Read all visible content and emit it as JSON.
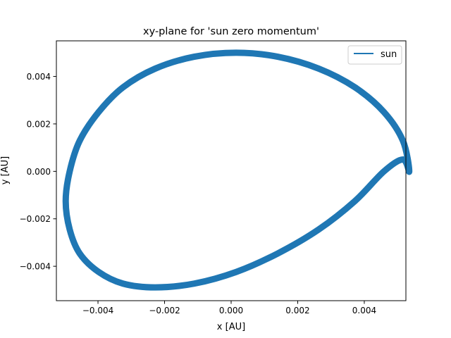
{
  "chart_data": {
    "type": "line",
    "title": "xy-plane for 'sun zero momentum'",
    "xlabel": "x [AU]",
    "ylabel": "y [AU]",
    "xlim": [
      -0.00525,
      0.00525
    ],
    "ylim": [
      -0.00545,
      0.0055
    ],
    "xticks": [
      {
        "value": -0.004,
        "label": "−0.004"
      },
      {
        "value": -0.002,
        "label": "−0.002"
      },
      {
        "value": 0.0,
        "label": "0.000"
      },
      {
        "value": 0.002,
        "label": "0.002"
      },
      {
        "value": 0.004,
        "label": "0.004"
      }
    ],
    "yticks": [
      {
        "value": -0.004,
        "label": "−0.004"
      },
      {
        "value": -0.002,
        "label": "−0.002"
      },
      {
        "value": 0.0,
        "label": "0.000"
      },
      {
        "value": 0.002,
        "label": "0.002"
      },
      {
        "value": 0.004,
        "label": "0.004"
      }
    ],
    "grid": false,
    "legend": {
      "position": "top-right",
      "entries": [
        "sun"
      ]
    },
    "series": [
      {
        "name": "sun",
        "color": "#1f77b4",
        "x": [
          0.00535,
          0.00516,
          0.00459,
          0.00372,
          0.00263,
          0.0014,
          0.00015,
          -0.00111,
          -0.00228,
          -0.00325,
          -0.00398,
          -0.00455,
          -0.00485,
          -0.00497,
          -0.00485,
          -0.00455,
          -0.00398,
          -0.00325,
          -0.00228,
          -0.00111,
          0.00015,
          0.0014,
          0.00263,
          0.00372,
          0.00459,
          0.00516,
          0.00535
        ],
        "y": [
          0.0,
          0.00129,
          0.0025,
          0.00354,
          0.00433,
          0.00483,
          0.005,
          0.00483,
          0.00433,
          0.00354,
          0.0025,
          0.00129,
          0.0,
          -0.00125,
          -0.00245,
          -0.00346,
          -0.00424,
          -0.00473,
          -0.00489,
          -0.00473,
          -0.00424,
          -0.00346,
          -0.00245,
          -0.00125,
          0.0,
          0.0005,
          0.0
        ]
      }
    ]
  }
}
